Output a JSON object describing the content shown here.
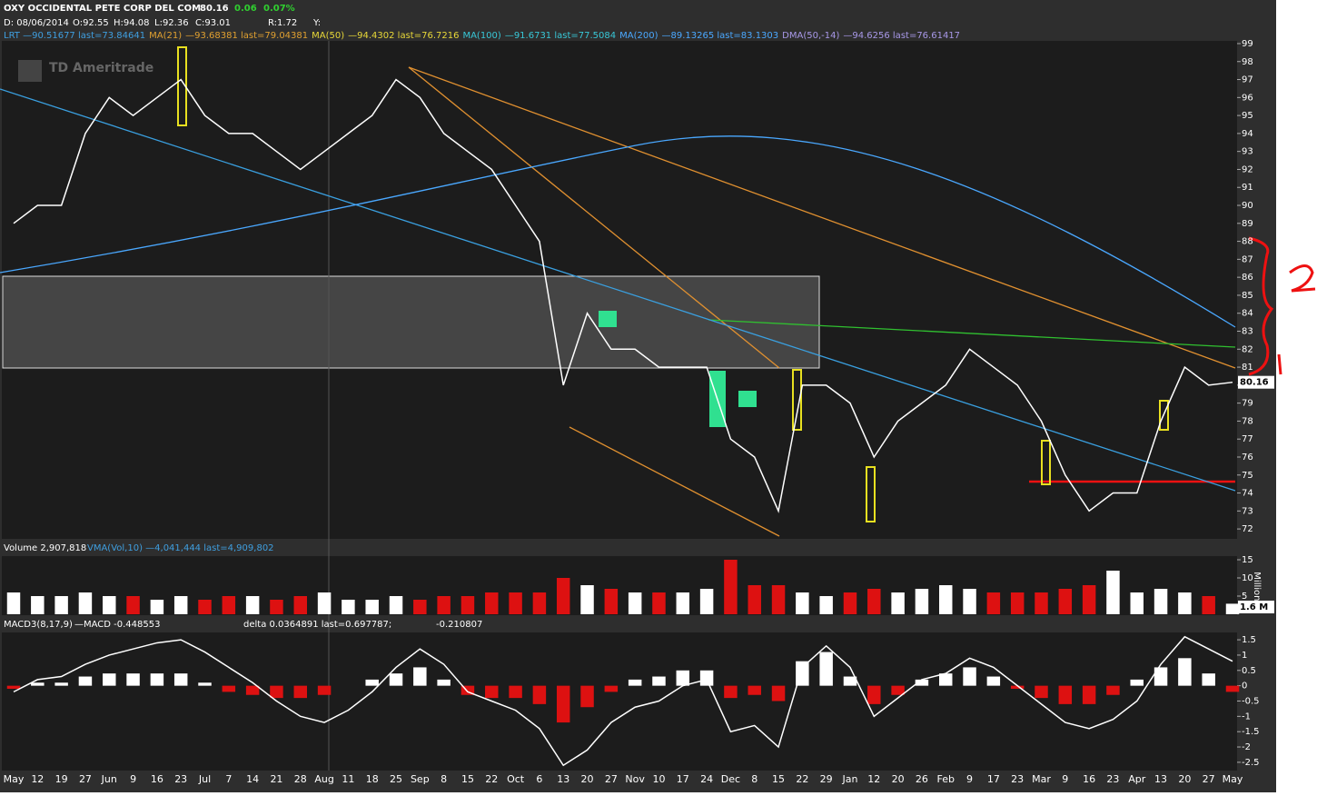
{
  "header": {
    "symbol": "OXY OCCIDENTAL PETE CORP DEL COM",
    "last": "80.16",
    "change": "0.06",
    "change_pct": "0.07%",
    "bar_date": "D: 08/06/2014",
    "open": "O:92.55",
    "high": "H:94.08",
    "low": "L:92.36",
    "close": "C:93.01",
    "range": "R:1.72",
    "y": "Y:"
  },
  "studies": [
    {
      "text": "LRT —90.51677 last=73.84641",
      "color": "#3f9fe0"
    },
    {
      "text": "MA(21)",
      "color": "#e0a030"
    },
    {
      "text": "—93.68381 last=79.04381",
      "color": "#e0a030"
    },
    {
      "text": "MA(50)",
      "color": "#e8d838"
    },
    {
      "text": "—94.4302 last=76.7216",
      "color": "#e8d838"
    },
    {
      "text": "MA(100)",
      "color": "#38c8d8"
    },
    {
      "text": "—91.6731 last=77.5084",
      "color": "#38c8d8"
    },
    {
      "text": "MA(200)",
      "color": "#4aa8ff"
    },
    {
      "text": "—89.13265 last=83.1303",
      "color": "#4aa8ff"
    },
    {
      "text": "DMA(50,-14)",
      "color": "#a898e8"
    },
    {
      "text": "—94.6256 last=76.61417",
      "color": "#a898e8"
    }
  ],
  "chart_data": [
    {
      "type": "line",
      "title": "TD Ameritrade",
      "color": "#ffffff",
      "ylim": [
        71.45,
        99.15
      ],
      "yticks": [
        72,
        73,
        74,
        75,
        76,
        77,
        78,
        79,
        80,
        81,
        82,
        83,
        84,
        85,
        86,
        87,
        88,
        89,
        90,
        91,
        92,
        93,
        94,
        95,
        96,
        97,
        98,
        99
      ],
      "categories": [
        "May",
        "12",
        "19",
        "27",
        "Jun",
        "9",
        "16",
        "23",
        "Jul",
        "7",
        "14",
        "21",
        "28",
        "Aug",
        "11",
        "18",
        "25",
        "Sep",
        "8",
        "15",
        "22",
        "Oct",
        "6",
        "13",
        "20",
        "27",
        "Nov",
        "10",
        "17",
        "24",
        "Dec",
        "8",
        "15",
        "22",
        "29",
        "Jan",
        "12",
        "20",
        "26",
        "Feb",
        "9",
        "17",
        "23",
        "Mar",
        "9",
        "16",
        "23",
        "Apr",
        "13",
        "20",
        "27",
        "May"
      ],
      "values": [
        89,
        90,
        90,
        94,
        96,
        95,
        96,
        97,
        95,
        94,
        94,
        93,
        92,
        93,
        94,
        95,
        97,
        96,
        94,
        93,
        92,
        90,
        88,
        80,
        84,
        82,
        82,
        81,
        81,
        81,
        77,
        76,
        73,
        80,
        80,
        79,
        76,
        78,
        79,
        80,
        82,
        81,
        80,
        78,
        75,
        73,
        74,
        74,
        78,
        81,
        80,
        80.16
      ]
    },
    {
      "type": "bar",
      "title": "Volume 2,907,818",
      "legend": "VMA(Vol,10) —4,041,444 last=4,909,802",
      "unit": "Millions",
      "current": "1.6 M",
      "color": "#ffffff",
      "down_color": "#dd1111",
      "ylim": [
        0,
        16
      ],
      "yticks": [
        5,
        10,
        15
      ],
      "values": [
        6,
        5,
        5,
        6,
        5,
        5,
        4,
        5,
        4,
        5,
        5,
        4,
        5,
        6,
        4,
        4,
        5,
        4,
        5,
        5,
        6,
        6,
        6,
        10,
        8,
        7,
        6,
        6,
        6,
        7,
        15,
        8,
        8,
        6,
        5,
        6,
        7,
        6,
        7,
        8,
        7,
        6,
        6,
        6,
        7,
        8,
        12,
        6,
        7,
        6,
        5,
        2.9
      ]
    },
    {
      "type": "combo",
      "title": "MACD3(8,17,9)",
      "legend": "—MACD -0.448553",
      "delta": "delta 0.0364891 last=0.697787;",
      "last": "-0.210807",
      "ylim": [
        -2.77,
        1.74
      ],
      "yticks": [
        -2.5,
        -2,
        -1.5,
        -1,
        -0.5,
        0,
        0.5,
        1,
        1.5
      ],
      "series": [
        {
          "type": "bar",
          "color": "#ffffff",
          "negative_color": "#dd1111",
          "values": [
            -0.1,
            0.1,
            0.1,
            0.3,
            0.4,
            0.4,
            0.4,
            0.4,
            0.1,
            -0.2,
            -0.3,
            -0.4,
            -0.4,
            -0.3,
            0.0,
            0.2,
            0.4,
            0.6,
            0.2,
            -0.3,
            -0.4,
            -0.4,
            -0.6,
            -1.2,
            -0.7,
            -0.2,
            0.2,
            0.3,
            0.5,
            0.5,
            -0.4,
            -0.3,
            -0.5,
            0.8,
            1.1,
            0.3,
            -0.6,
            -0.3,
            0.2,
            0.4,
            0.6,
            0.3,
            -0.1,
            -0.4,
            -0.6,
            -0.6,
            -0.3,
            0.2,
            0.6,
            0.9,
            0.4,
            -0.2
          ]
        },
        {
          "type": "line",
          "color": "#ffffff",
          "values": [
            -0.2,
            0.2,
            0.3,
            0.7,
            1.0,
            1.2,
            1.4,
            1.5,
            1.1,
            0.6,
            0.1,
            -0.5,
            -1.0,
            -1.2,
            -0.8,
            -0.2,
            0.6,
            1.2,
            0.7,
            -0.2,
            -0.5,
            -0.8,
            -1.4,
            -2.6,
            -2.1,
            -1.2,
            -0.7,
            -0.5,
            0.0,
            0.2,
            -1.5,
            -1.3,
            -2.0,
            0.6,
            1.3,
            0.6,
            -1.0,
            -0.4,
            0.2,
            0.4,
            0.9,
            0.6,
            0.0,
            -0.6,
            -1.2,
            -1.4,
            -1.1,
            -0.5,
            0.7,
            1.6,
            1.2,
            0.8
          ]
        }
      ]
    }
  ]
}
